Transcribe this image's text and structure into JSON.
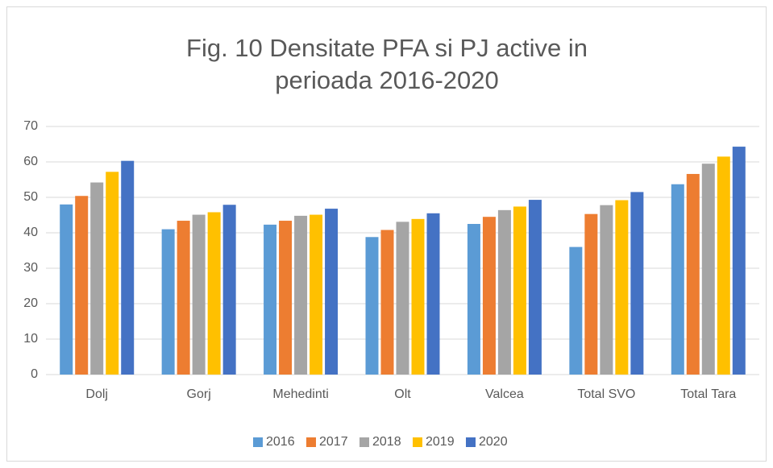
{
  "chart_data": {
    "type": "bar",
    "title": "Fig. 10 Densitate PFA si PJ active in perioada 2016-2020",
    "categories": [
      "Dolj",
      "Gorj",
      "Mehedinti",
      "Olt",
      "Valcea",
      "Total SVO",
      "Total Tara"
    ],
    "series": [
      {
        "name": "2016",
        "color": "#5b9bd5",
        "values": [
          48,
          41,
          42.3,
          38.8,
          42.5,
          36,
          53.7
        ]
      },
      {
        "name": "2017",
        "color": "#ed7d31",
        "values": [
          50.4,
          43.4,
          43.4,
          40.8,
          44.5,
          45.3,
          56.6
        ]
      },
      {
        "name": "2018",
        "color": "#a5a5a5",
        "values": [
          54.2,
          45.1,
          44.8,
          43.1,
          46.4,
          47.8,
          59.5
        ]
      },
      {
        "name": "2019",
        "color": "#ffc000",
        "values": [
          57.2,
          45.8,
          45.1,
          43.9,
          47.4,
          49.2,
          61.5
        ]
      },
      {
        "name": "2020",
        "color": "#4472c4",
        "values": [
          60.3,
          47.9,
          46.8,
          45.5,
          49.3,
          51.5,
          64.3
        ]
      }
    ],
    "ylim": [
      0,
      70
    ],
    "yticks": [
      0,
      10,
      20,
      30,
      40,
      50,
      60,
      70
    ],
    "grid": true,
    "legend": "bottom"
  }
}
